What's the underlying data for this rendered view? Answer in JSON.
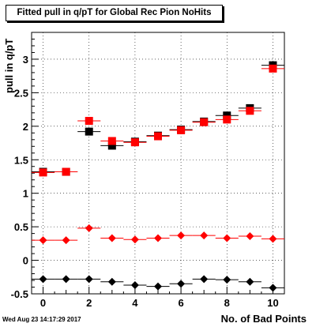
{
  "chart_data": {
    "type": "scatter",
    "title": "Fitted pull in q/pT for Global Rec Pion NoHits",
    "xlabel": "No. of Bad Points",
    "ylabel": "pull in q/pT",
    "xlim": [
      -0.5,
      10.5
    ],
    "ylim": [
      -0.5,
      3.4
    ],
    "xticks": [
      "0",
      "2",
      "4",
      "6",
      "8",
      "10"
    ],
    "yticks": [
      "-0.5",
      "0",
      "0.5",
      "1",
      "1.5",
      "2",
      "2.5",
      "3"
    ],
    "grid": true,
    "timestamp": "Wed Aug 23 14:17:29 2017",
    "series": [
      {
        "marker": "square",
        "color": "#000000",
        "x": [
          0,
          1,
          2,
          3,
          4,
          5,
          6,
          7,
          8,
          9,
          10
        ],
        "y": [
          1.32,
          1.32,
          1.92,
          1.71,
          1.77,
          1.86,
          1.95,
          2.07,
          2.16,
          2.27,
          2.91
        ]
      },
      {
        "marker": "square",
        "color": "#ff0000",
        "x": [
          0,
          1,
          2,
          3,
          4,
          5,
          6,
          7,
          8,
          9,
          10
        ],
        "y": [
          1.31,
          1.32,
          2.08,
          1.78,
          1.76,
          1.85,
          1.94,
          2.06,
          2.1,
          2.23,
          2.86
        ]
      },
      {
        "marker": "diamond",
        "color": "#ff0000",
        "x": [
          0,
          1,
          2,
          3,
          4,
          5,
          6,
          7,
          8,
          9,
          10
        ],
        "y": [
          0.3,
          0.3,
          0.48,
          0.33,
          0.31,
          0.33,
          0.37,
          0.37,
          0.33,
          0.36,
          0.32
        ]
      },
      {
        "marker": "diamond",
        "color": "#000000",
        "x": [
          0,
          1,
          2,
          3,
          4,
          5,
          6,
          7,
          8,
          9,
          10
        ],
        "y": [
          -0.28,
          -0.28,
          -0.28,
          -0.32,
          -0.37,
          -0.39,
          -0.35,
          -0.28,
          -0.29,
          -0.32,
          -0.41
        ]
      }
    ]
  }
}
